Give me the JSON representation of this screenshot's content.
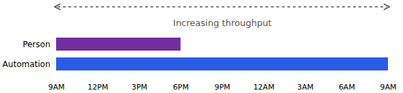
{
  "chart_data": {
    "type": "bar",
    "orientation": "horizontal",
    "title": "Increasing throughput",
    "categories": [
      "Person",
      "Automation"
    ],
    "values": [
      9,
      24
    ],
    "colors": [
      "#7030a0",
      "#2b5ce6"
    ],
    "xlim": [
      0,
      24
    ],
    "xticks": [
      {
        "value": 0,
        "label": "9AM"
      },
      {
        "value": 3,
        "label": "12PM"
      },
      {
        "value": 6,
        "label": "3PM"
      },
      {
        "value": 9,
        "label": "6PM"
      },
      {
        "value": 12,
        "label": "9PM"
      },
      {
        "value": 15,
        "label": "12AM"
      },
      {
        "value": 18,
        "label": "3AM"
      },
      {
        "value": 21,
        "label": "6AM"
      },
      {
        "value": 24,
        "label": "9AM"
      }
    ],
    "grid": false
  }
}
